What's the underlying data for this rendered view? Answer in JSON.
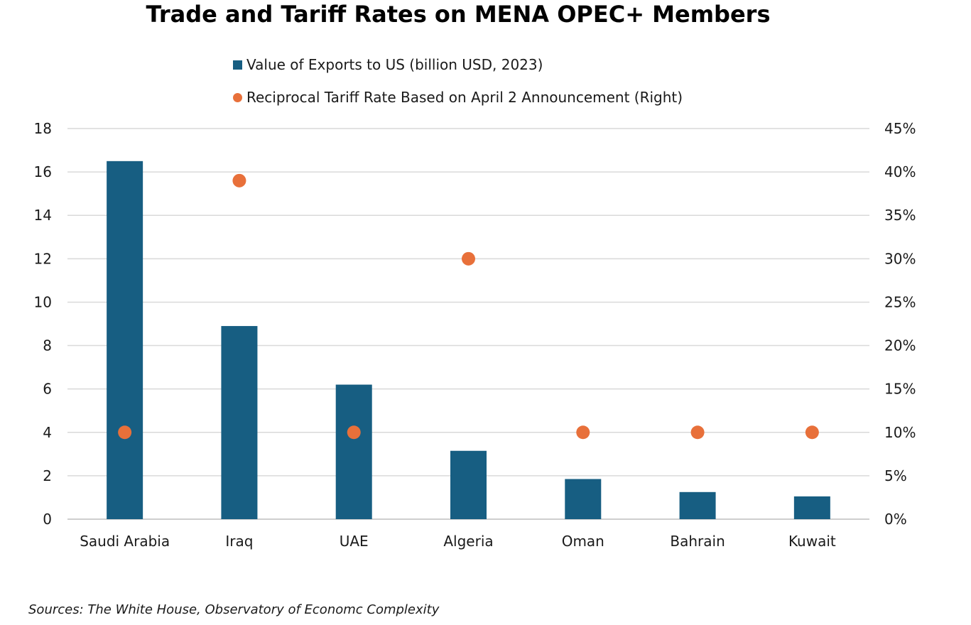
{
  "chart_data": {
    "type": "bar",
    "title": "Trade and Tariff Rates on MENA OPEC+ Members",
    "categories": [
      "Saudi Arabia",
      "Iraq",
      "UAE",
      "Algeria",
      "Oman",
      "Bahrain",
      "Kuwait"
    ],
    "series": [
      {
        "name": "Value of Exports to US (billion USD, 2023)",
        "type": "bar",
        "axis": "left",
        "color": "#175e82",
        "values": [
          16.5,
          8.9,
          6.2,
          3.15,
          1.85,
          1.25,
          1.05
        ]
      },
      {
        "name": "Reciprocal Tariff Rate Based on April 2 Announcement (Right)",
        "type": "scatter",
        "axis": "right",
        "color": "#e8703a",
        "values": [
          10,
          39,
          10,
          30,
          10,
          10,
          10
        ]
      }
    ],
    "y_left": {
      "ylim": [
        0,
        18
      ],
      "ticks": [
        "0",
        "2",
        "4",
        "6",
        "8",
        "10",
        "12",
        "14",
        "16",
        "18"
      ]
    },
    "y_right": {
      "ylim": [
        0,
        45
      ],
      "ticks": [
        "0%",
        "5%",
        "10%",
        "15%",
        "20%",
        "25%",
        "30%",
        "35%",
        "40%",
        "45%"
      ]
    },
    "grid": true,
    "legend_position": "top-center",
    "source": "Sources: The White House, Observatory of Economc Complexity"
  }
}
